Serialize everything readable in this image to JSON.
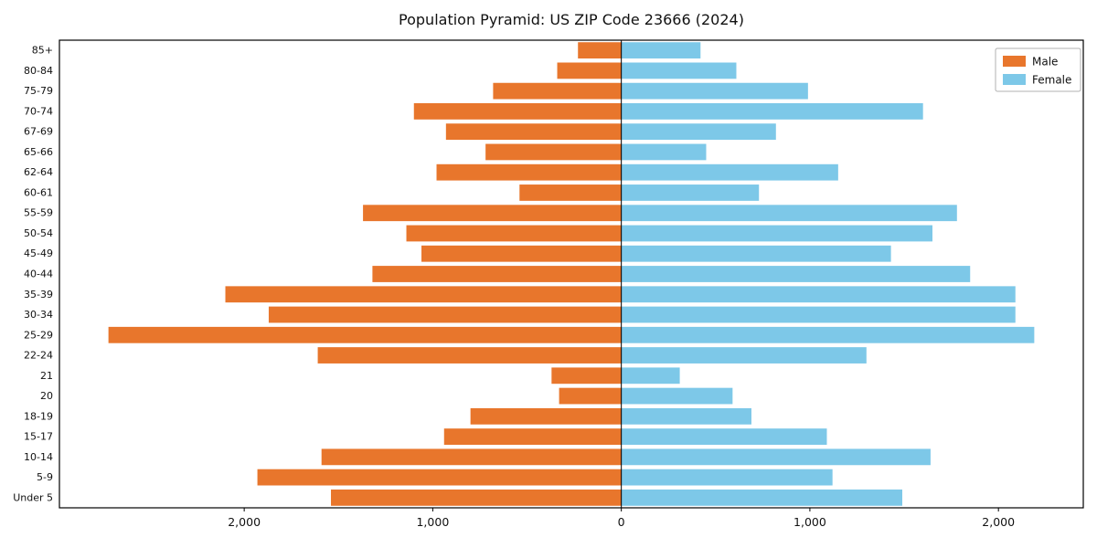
{
  "chart_data": {
    "type": "bar",
    "orientation": "horizontal-population-pyramid",
    "title": "Population Pyramid: US ZIP Code 23666 (2024)",
    "categories": [
      "85+",
      "80-84",
      "75-79",
      "70-74",
      "67-69",
      "65-66",
      "62-64",
      "60-61",
      "55-59",
      "50-54",
      "45-49",
      "40-44",
      "35-39",
      "30-34",
      "25-29",
      "22-24",
      "21",
      "20",
      "18-19",
      "15-17",
      "10-14",
      "5-9",
      "Under 5"
    ],
    "series": [
      {
        "name": "Male",
        "side": "left",
        "color": "#e8762c",
        "values": [
          230,
          340,
          680,
          1100,
          930,
          720,
          980,
          540,
          1370,
          1140,
          1060,
          1320,
          2100,
          1870,
          2720,
          1610,
          370,
          330,
          800,
          940,
          1590,
          1930,
          1540
        ]
      },
      {
        "name": "Female",
        "side": "right",
        "color": "#7dc8e8",
        "values": [
          420,
          610,
          990,
          1600,
          820,
          450,
          1150,
          730,
          1780,
          1650,
          1430,
          1850,
          2090,
          2090,
          2190,
          1300,
          310,
          590,
          690,
          1090,
          1640,
          1120,
          1490
        ]
      }
    ],
    "x_ticks": [
      -2000,
      -1000,
      0,
      1000,
      2000
    ],
    "x_tick_labels": [
      "2,000",
      "1,000",
      "0",
      "1,000",
      "2,000"
    ],
    "xlim": [
      -2980,
      2450
    ],
    "xlabel": "",
    "ylabel": "",
    "grid": false,
    "legend_position": "upper right",
    "axis_color": "#000000",
    "zero_line": true
  },
  "legend": {
    "male_label": "Male",
    "female_label": "Female"
  }
}
